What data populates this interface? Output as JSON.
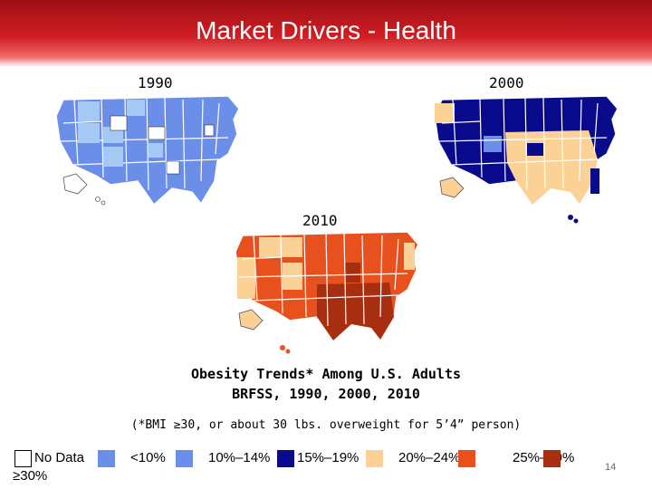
{
  "slide": {
    "title": "Market Drivers - Health",
    "page_number": "14"
  },
  "maps": [
    {
      "year": "1990",
      "palette": [
        "#6b8ee8",
        "#a6c8f5",
        "#ffffff"
      ]
    },
    {
      "year": "2000",
      "palette": [
        "#0a0a8c",
        "#fbd196",
        "#6b8ee8"
      ]
    },
    {
      "year": "2010",
      "palette": [
        "#e8511e",
        "#fbd196",
        "#a82e10",
        "#c2351a"
      ]
    }
  ],
  "caption": {
    "line1": "Obesity Trends* Among U.S. Adults",
    "line2": "BRFSS, 1990, 2000, 2010",
    "note": "(*BMI ≥30, or about 30 lbs. overweight for 5’4” person)"
  },
  "legend": [
    {
      "label": "No Data",
      "color": "#ffffff"
    },
    {
      "label": "<10%",
      "color": "#6b8ee8"
    },
    {
      "label": "10%–14%",
      "color": "#0a0a8c"
    },
    {
      "label": "15%–19%",
      "color": "#fbd196"
    },
    {
      "label": "20%–24%",
      "color": "#e8511e"
    },
    {
      "label": "25%–29%",
      "color": "#a82e10"
    },
    {
      "label": "≥30%",
      "color": "#ffffff"
    }
  ]
}
